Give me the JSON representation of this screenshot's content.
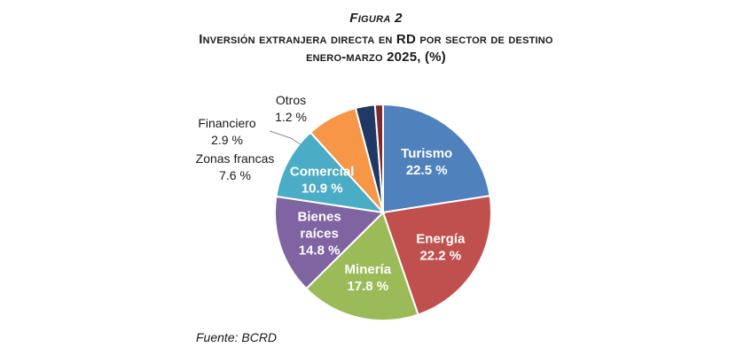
{
  "figure": {
    "label": "Figura 2",
    "title_lines": [
      "Inversión extranjera directa en RD por sector de destino",
      "enero-marzo 2025, (%)"
    ],
    "source": "Fuente: BCRD"
  },
  "chart_data": {
    "type": "pie",
    "title": "Inversión extranjera directa en RD por sector de destino enero-marzo 2025, (%)",
    "unit": "%",
    "slices": [
      {
        "label": "Turismo",
        "value": 22.5,
        "value_label": "22.5 %",
        "color": "#4f81bd",
        "label_inside": true
      },
      {
        "label": "Energía",
        "value": 22.2,
        "value_label": "22.2 %",
        "color": "#c0504d",
        "label_inside": true
      },
      {
        "label": "Minería",
        "value": 17.8,
        "value_label": "17.8 %",
        "color": "#9bbb59",
        "label_inside": true
      },
      {
        "label": "Bienes raíces",
        "value": 14.8,
        "value_label": "14.8 %",
        "color": "#8064a2",
        "label_inside": true
      },
      {
        "label": "Comercial",
        "value": 10.9,
        "value_label": "10.9 %",
        "color": "#4bacc6",
        "label_inside": true
      },
      {
        "label": "Zonas francas",
        "value": 7.6,
        "value_label": "7.6 %",
        "color": "#f79646",
        "label_inside": false
      },
      {
        "label": "Financiero",
        "value": 2.9,
        "value_label": "2.9 %",
        "color": "#1f3864",
        "label_inside": false
      },
      {
        "label": "Otros",
        "value": 1.2,
        "value_label": "1.2 %",
        "color": "#7b2c2c",
        "label_inside": false
      }
    ],
    "start": "top, clockwise",
    "legend": "none (labels on slices)"
  }
}
